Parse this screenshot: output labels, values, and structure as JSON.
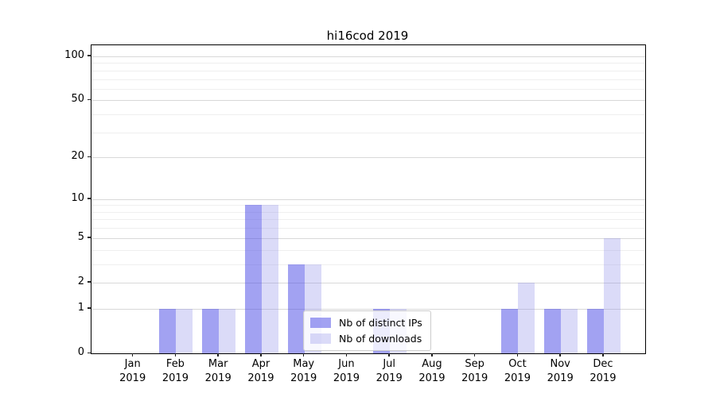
{
  "chart_data": {
    "type": "bar",
    "title": "hi16cod 2019",
    "xlabel": "",
    "ylabel": "",
    "categories": [
      "Jan 2019",
      "Feb 2019",
      "Mar 2019",
      "Apr 2019",
      "May 2019",
      "Jun 2019",
      "Jul 2019",
      "Aug 2019",
      "Sep 2019",
      "Oct 2019",
      "Nov 2019",
      "Dec 2019"
    ],
    "series": [
      {
        "name": "Nb of distinct IPs",
        "color": "rgba(70,70,230,0.5)",
        "values": [
          0,
          1,
          1,
          9,
          3,
          0,
          1,
          0,
          0,
          1,
          1,
          1
        ]
      },
      {
        "name": "Nb of downloads",
        "color": "rgba(135,135,232,0.3)",
        "values": [
          0,
          1,
          1,
          9,
          3,
          0,
          1,
          0,
          0,
          2,
          1,
          5
        ]
      }
    ],
    "yscale": "log1p",
    "ylim": [
      0,
      119
    ],
    "yticks_labeled": [
      0,
      1,
      2,
      5,
      10,
      20,
      50,
      100
    ],
    "yticks_minor": [
      3,
      4,
      6,
      7,
      8,
      9,
      30,
      40,
      60,
      70,
      80,
      90
    ],
    "grid": "horizontal",
    "legend_position": "lower-center-inside"
  }
}
